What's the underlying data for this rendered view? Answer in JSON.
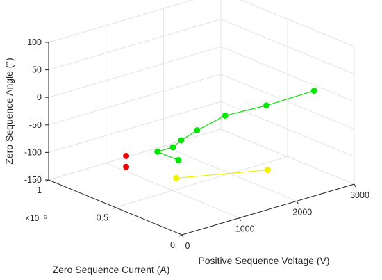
{
  "chart_data": {
    "type": "scatter3d",
    "xlabel": "Positive Sequence Voltage (V)",
    "ylabel": "Zero Sequence Current (A)",
    "zlabel": "Zero Sequence Angle (°)",
    "y_exponent_label": "×10⁻⁶",
    "xlim": [
      0,
      3000
    ],
    "ylim": [
      0,
      1
    ],
    "zlim": [
      -150,
      100
    ],
    "x_ticks": [
      0,
      1000,
      2000,
      3000
    ],
    "x_tick_labels": [
      "0",
      "1000",
      "2000",
      "3000"
    ],
    "y_ticks": [
      0,
      0.5,
      1
    ],
    "y_tick_labels": [
      "0",
      "0.5",
      "1"
    ],
    "z_ticks": [
      -150,
      -100,
      -50,
      0,
      50,
      100
    ],
    "z_tick_labels": [
      "-150",
      "-100",
      "-50",
      "0",
      "50",
      "100"
    ],
    "grid": true,
    "series": [
      {
        "color": "#00e600",
        "connected": true,
        "points": [
          {
            "x": 2860,
            "y": 0.24,
            "z": 0
          },
          {
            "x": 2050,
            "y": 0.25,
            "z": -3
          },
          {
            "x": 1520,
            "y": 0.33,
            "z": -13
          },
          {
            "x": 1240,
            "y": 0.42,
            "z": -40
          },
          {
            "x": 1100,
            "y": 0.48,
            "z": -60
          },
          {
            "x": 1050,
            "y": 0.52,
            "z": -75
          },
          {
            "x": 920,
            "y": 0.58,
            "z": -85
          },
          {
            "x": 1100,
            "y": 0.5,
            "z": -98
          }
        ]
      },
      {
        "color": "#e60000",
        "connected": false,
        "points": [
          {
            "x": 700,
            "y": 0.72,
            "z": -100
          },
          {
            "x": 700,
            "y": 0.72,
            "z": -120
          }
        ]
      },
      {
        "color": "#f0f000",
        "connected": true,
        "points": [
          {
            "x": 2470,
            "y": 0.42,
            "z": -150
          },
          {
            "x": 1340,
            "y": 0.62,
            "z": -150
          }
        ]
      }
    ]
  }
}
